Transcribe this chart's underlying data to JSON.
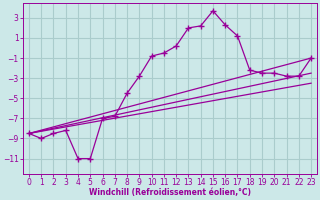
{
  "xlabel": "Windchill (Refroidissement éolien,°C)",
  "background_color": "#cce8e8",
  "grid_color": "#aacccc",
  "line_color": "#990099",
  "xlim": [
    -0.5,
    23.5
  ],
  "ylim": [
    -12.5,
    4.5
  ],
  "yticks": [
    3,
    1,
    -1,
    -3,
    -5,
    -7,
    -9,
    -11
  ],
  "xticks": [
    0,
    1,
    2,
    3,
    4,
    5,
    6,
    7,
    8,
    9,
    10,
    11,
    12,
    13,
    14,
    15,
    16,
    17,
    18,
    19,
    20,
    21,
    22,
    23
  ],
  "curve1_x": [
    0,
    1,
    2,
    3,
    4,
    5,
    6,
    7,
    8,
    9,
    10,
    11,
    12,
    13,
    14,
    15,
    16,
    17,
    18,
    19,
    20,
    21,
    22,
    23
  ],
  "curve1_y": [
    -8.5,
    -9.0,
    -8.5,
    -8.2,
    -11.0,
    -11.0,
    -7.0,
    -6.8,
    -4.5,
    -2.8,
    -0.8,
    -0.5,
    0.2,
    2.0,
    2.2,
    3.7,
    2.3,
    1.2,
    -2.2,
    -2.5,
    -2.5,
    -2.8,
    -2.8,
    -1.0
  ],
  "line1_x": [
    0,
    23
  ],
  "line1_y": [
    -8.5,
    -1.0
  ],
  "line2_x": [
    0,
    23
  ],
  "line2_y": [
    -8.5,
    -2.5
  ],
  "line3_x": [
    0,
    23
  ],
  "line3_y": [
    -8.5,
    -3.5
  ]
}
